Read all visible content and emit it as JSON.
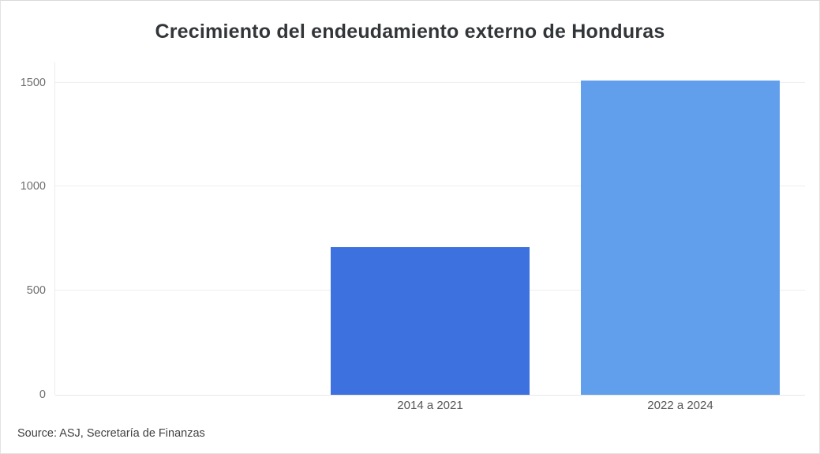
{
  "title": "Crecimiento del endeudamiento externo de Honduras",
  "source_note": "Source: ASJ, Secretaría de Finanzas",
  "chart_data": {
    "type": "bar",
    "title": "Crecimiento del endeudamiento externo de Honduras",
    "categories": [
      "2014 a 2021",
      "2022 a 2024"
    ],
    "values": [
      710,
      1510
    ],
    "bar_colors": [
      "#3D71DF",
      "#619FEC"
    ],
    "xlabel": "",
    "ylabel": "",
    "yticks": [
      0,
      500,
      1000,
      1500
    ],
    "ylim": [
      0,
      1590
    ],
    "grid": true,
    "legend": false,
    "source": "Source: ASJ, Secretaría de Finanzas",
    "layout_hints": {
      "band_count": 3,
      "bars_start_at_band": 1,
      "bar_width_ratio": 0.796,
      "gridline_color": "#efefef",
      "baseline_color": "#e7e7e7",
      "axis_line_color": "#ececec"
    }
  },
  "styles": {
    "background": "#ffffff",
    "border_color": "#e2e2e2",
    "title_color": "#333639",
    "ytick_color": "#6e6e6e",
    "xlabel_color": "#565656",
    "source_color": "#414141"
  }
}
